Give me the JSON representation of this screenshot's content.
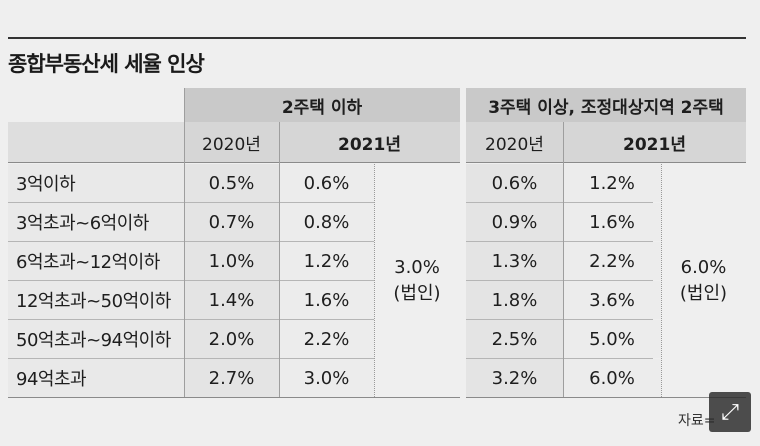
{
  "title": "종합부동산세 세율 인상",
  "groups": [
    "2주택 이하",
    "3주택 이상, 조정대상지역 2주택"
  ],
  "years": {
    "prev": "2020년",
    "curr": "2021년"
  },
  "rows": [
    {
      "label": "3억이하",
      "g1_2020": "0.5%",
      "g1_2021": "0.6%",
      "g2_2020": "0.6%",
      "g2_2021": "1.2%"
    },
    {
      "label": "3억초과~6억이하",
      "g1_2020": "0.7%",
      "g1_2021": "0.8%",
      "g2_2020": "0.9%",
      "g2_2021": "1.6%"
    },
    {
      "label": "6억초과~12억이하",
      "g1_2020": "1.0%",
      "g1_2021": "1.2%",
      "g2_2020": "1.3%",
      "g2_2021": "2.2%"
    },
    {
      "label": "12억초과~50억이하",
      "g1_2020": "1.4%",
      "g1_2021": "1.6%",
      "g2_2020": "1.8%",
      "g2_2021": "3.6%"
    },
    {
      "label": "50억초과~94억이하",
      "g1_2020": "2.0%",
      "g1_2021": "2.2%",
      "g2_2020": "2.5%",
      "g2_2021": "5.0%"
    },
    {
      "label": "94억초과",
      "g1_2020": "2.7%",
      "g1_2021": "3.0%",
      "g2_2020": "3.2%",
      "g2_2021": "6.0%"
    }
  ],
  "corporate": {
    "g1_rate": "3.0%",
    "g1_note": "(법인)",
    "g2_rate": "6.0%",
    "g2_note": "(법인)"
  },
  "source": "자료=",
  "icons": {
    "expand": "expand-icon"
  }
}
